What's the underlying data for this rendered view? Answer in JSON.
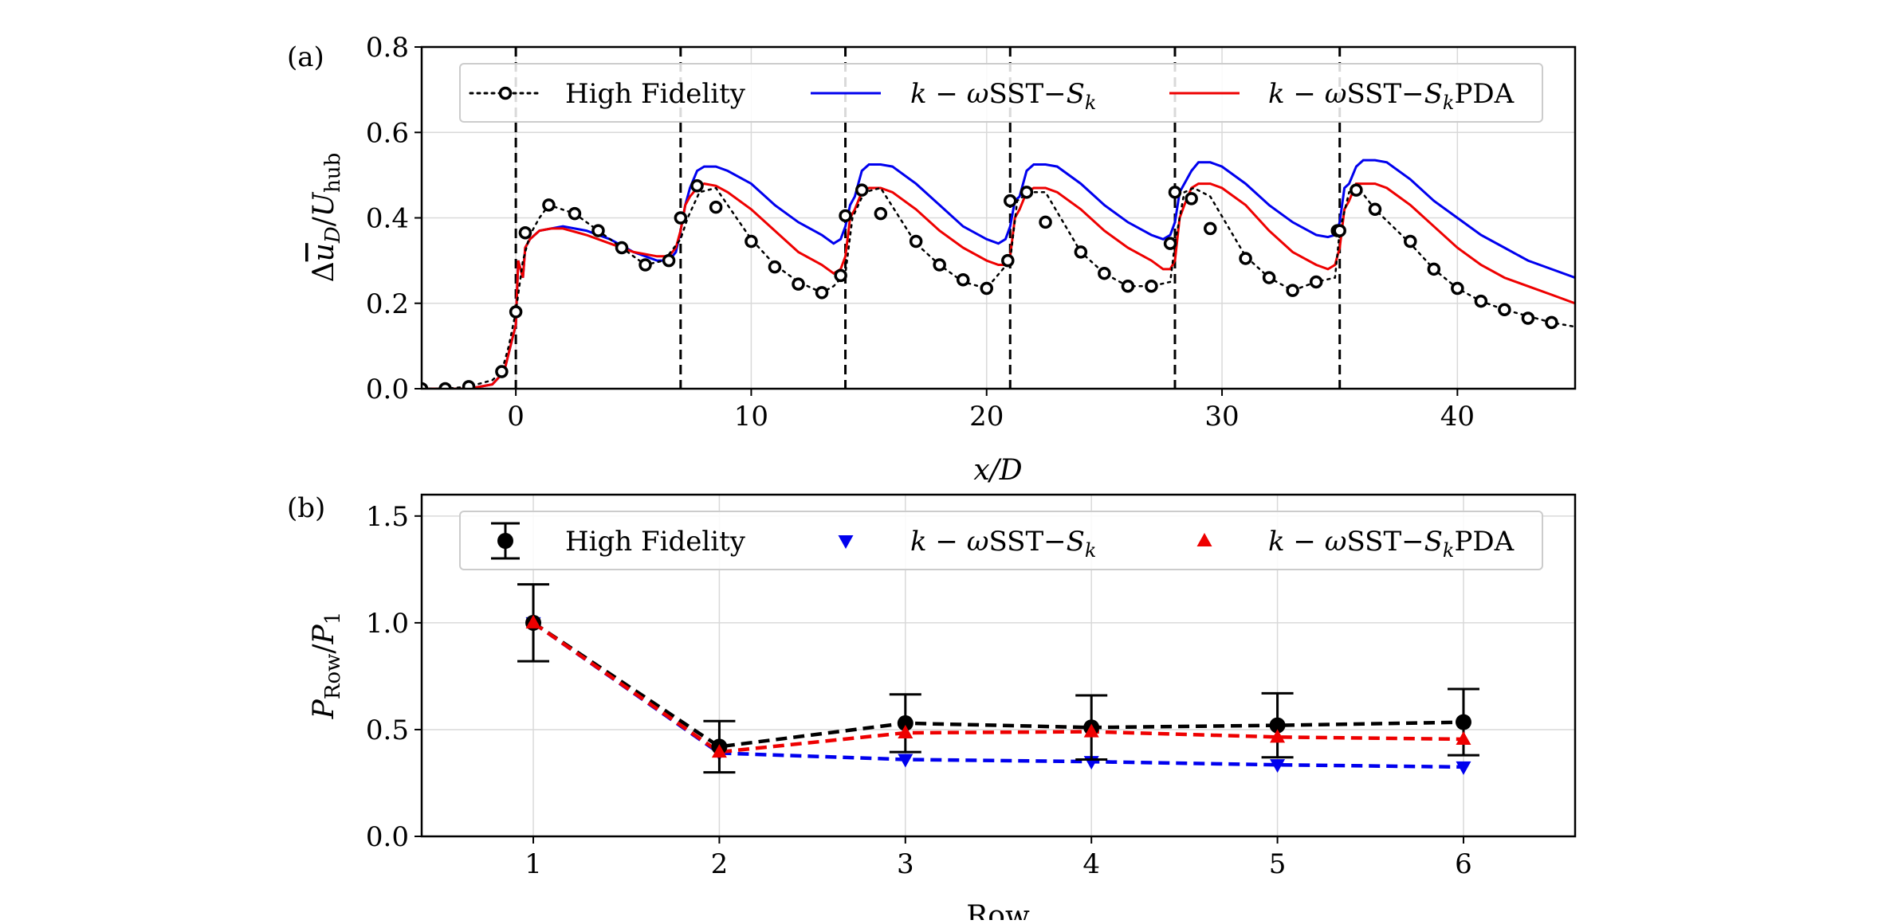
{
  "chart_data": [
    {
      "type": "line",
      "panel_label": "(a)",
      "xlabel": "x/D",
      "ylabel": "Δū_D/U_hub",
      "xlim": [
        -4,
        45
      ],
      "ylim": [
        0,
        0.8
      ],
      "xticks": [
        0,
        10,
        20,
        30,
        40
      ],
      "yticks": [
        0.0,
        0.2,
        0.4,
        0.6,
        0.8
      ],
      "xtick_labels": [
        "0",
        "10",
        "20",
        "30",
        "40"
      ],
      "ytick_labels": [
        "0.0",
        "0.2",
        "0.4",
        "0.6",
        "0.8"
      ],
      "grid": true,
      "legend_position": "top",
      "turbine_rows_x": [
        0,
        7,
        14,
        21,
        28,
        35
      ],
      "series": [
        {
          "name": "High Fidelity",
          "style": "dotted-circles",
          "color": "#000000",
          "x": [
            -4,
            -3,
            -2,
            -1,
            -0.6,
            -0.3,
            0,
            0.3,
            0.6,
            1.0,
            1.4,
            2.5,
            3.5,
            4.5,
            5.5,
            6.3,
            7.0,
            7.3,
            7.8,
            8.5,
            10,
            11,
            12,
            13,
            13.5,
            14.0,
            14.3,
            14.8,
            15.5,
            17,
            18,
            19,
            20,
            21.0,
            21.3,
            21.8,
            22.5,
            24,
            25,
            26,
            27,
            27.8,
            28.0,
            28.4,
            28.8,
            29.5,
            31,
            32,
            33,
            34,
            34.8,
            35.0,
            35.4,
            35.8,
            36.5,
            38,
            39,
            40,
            41,
            42,
            43,
            44,
            45
          ],
          "y": [
            0.0,
            0.0,
            0.005,
            0.02,
            0.04,
            0.1,
            0.18,
            0.3,
            0.36,
            0.4,
            0.43,
            0.41,
            0.37,
            0.33,
            0.29,
            0.3,
            0.35,
            0.4,
            0.46,
            0.47,
            0.35,
            0.29,
            0.25,
            0.225,
            0.24,
            0.27,
            0.4,
            0.46,
            0.47,
            0.34,
            0.29,
            0.25,
            0.235,
            0.3,
            0.44,
            0.46,
            0.46,
            0.32,
            0.27,
            0.24,
            0.24,
            0.25,
            0.34,
            0.46,
            0.47,
            0.45,
            0.31,
            0.26,
            0.23,
            0.25,
            0.26,
            0.37,
            0.46,
            0.47,
            0.42,
            0.34,
            0.28,
            0.235,
            0.205,
            0.185,
            0.17,
            0.155,
            0.145
          ],
          "markers_x": [
            -4,
            -3,
            -2,
            -0.6,
            0,
            0.4,
            1.4,
            2.5,
            3.5,
            4.5,
            5.5,
            6.5,
            7.0,
            7.7,
            8.5,
            10,
            11,
            12,
            13,
            13.8,
            14.0,
            14.7,
            15.5,
            17,
            18,
            19,
            20,
            20.9,
            21.0,
            21.7,
            22.5,
            24,
            25,
            26,
            27,
            27.8,
            28.0,
            28.7,
            29.5,
            31,
            32,
            33,
            34,
            34.9,
            35.0,
            35.7,
            36.5,
            38,
            39,
            40,
            41,
            42,
            43,
            44
          ],
          "markers_y": [
            0.0,
            0.0,
            0.005,
            0.04,
            0.18,
            0.365,
            0.43,
            0.41,
            0.37,
            0.33,
            0.29,
            0.3,
            0.4,
            0.475,
            0.425,
            0.345,
            0.285,
            0.245,
            0.225,
            0.265,
            0.405,
            0.465,
            0.41,
            0.345,
            0.29,
            0.255,
            0.235,
            0.3,
            0.44,
            0.46,
            0.39,
            0.32,
            0.27,
            0.24,
            0.24,
            0.34,
            0.46,
            0.445,
            0.375,
            0.305,
            0.26,
            0.23,
            0.25,
            0.37,
            0.37,
            0.465,
            0.42,
            0.345,
            0.28,
            0.235,
            0.205,
            0.185,
            0.165,
            0.155
          ]
        },
        {
          "name": "k−ωSST−S_k",
          "style": "solid",
          "color": "#0000ee",
          "x": [
            -4,
            -3,
            -2,
            -1,
            -0.5,
            0,
            0.1,
            0.3,
            0.4,
            0.6,
            1.0,
            2,
            3,
            4,
            5,
            6,
            6.5,
            6.8,
            7.0,
            7.2,
            7.4,
            7.7,
            8,
            8.5,
            9,
            10,
            11,
            12,
            13,
            13.5,
            13.8,
            14.0,
            14.2,
            14.4,
            14.7,
            15,
            15.5,
            16,
            17,
            18,
            19,
            20,
            20.5,
            20.8,
            21.0,
            21.2,
            21.4,
            21.7,
            22,
            22.5,
            23,
            24,
            25,
            26,
            27,
            27.5,
            27.8,
            28.0,
            28.2,
            28.4,
            28.7,
            29,
            29.5,
            30,
            31,
            32,
            33,
            34,
            34.5,
            34.8,
            35.0,
            35.2,
            35.4,
            35.7,
            36,
            36.5,
            37,
            38,
            39,
            40,
            41,
            42,
            43,
            44,
            45
          ],
          "y": [
            0.0,
            0.0,
            0.0,
            0.01,
            0.04,
            0.15,
            0.3,
            0.26,
            0.33,
            0.35,
            0.37,
            0.38,
            0.37,
            0.35,
            0.32,
            0.3,
            0.3,
            0.32,
            0.37,
            0.43,
            0.47,
            0.51,
            0.52,
            0.52,
            0.51,
            0.48,
            0.43,
            0.39,
            0.36,
            0.34,
            0.35,
            0.38,
            0.43,
            0.45,
            0.51,
            0.525,
            0.525,
            0.52,
            0.48,
            0.43,
            0.38,
            0.35,
            0.34,
            0.35,
            0.38,
            0.44,
            0.45,
            0.51,
            0.525,
            0.525,
            0.52,
            0.48,
            0.43,
            0.39,
            0.36,
            0.35,
            0.36,
            0.39,
            0.46,
            0.48,
            0.51,
            0.53,
            0.53,
            0.52,
            0.48,
            0.43,
            0.39,
            0.36,
            0.355,
            0.36,
            0.39,
            0.47,
            0.48,
            0.52,
            0.535,
            0.535,
            0.53,
            0.49,
            0.44,
            0.4,
            0.36,
            0.33,
            0.3,
            0.28,
            0.26
          ]
        },
        {
          "name": "k−ωSST−S_kPDA",
          "style": "solid",
          "color": "#ee0000",
          "x": [
            -4,
            -3,
            -2,
            -1,
            -0.5,
            0,
            0.1,
            0.3,
            0.4,
            0.6,
            1.0,
            1.5,
            2,
            3,
            4,
            5,
            6,
            6.5,
            6.8,
            7.0,
            7.2,
            7.4,
            7.7,
            8,
            8.5,
            9,
            10,
            11,
            12,
            13,
            13.5,
            13.8,
            14.0,
            14.2,
            14.4,
            14.7,
            15,
            15.5,
            16,
            17,
            18,
            19,
            20,
            20.5,
            20.8,
            21.0,
            21.2,
            21.4,
            21.7,
            22,
            22.5,
            23,
            24,
            25,
            26,
            27,
            27.5,
            27.8,
            28.0,
            28.2,
            28.4,
            28.7,
            29,
            29.5,
            30,
            31,
            32,
            33,
            34,
            34.5,
            34.8,
            35.0,
            35.2,
            35.4,
            35.7,
            36,
            36.5,
            37,
            38,
            39,
            40,
            41,
            42,
            43,
            44,
            45
          ],
          "y": [
            0.0,
            0.0,
            0.0,
            0.01,
            0.04,
            0.15,
            0.3,
            0.26,
            0.33,
            0.35,
            0.37,
            0.375,
            0.375,
            0.36,
            0.34,
            0.32,
            0.31,
            0.31,
            0.33,
            0.37,
            0.43,
            0.45,
            0.47,
            0.48,
            0.475,
            0.46,
            0.42,
            0.37,
            0.32,
            0.29,
            0.27,
            0.28,
            0.31,
            0.4,
            0.42,
            0.46,
            0.47,
            0.47,
            0.46,
            0.42,
            0.37,
            0.33,
            0.3,
            0.29,
            0.29,
            0.31,
            0.4,
            0.42,
            0.46,
            0.47,
            0.47,
            0.46,
            0.42,
            0.37,
            0.33,
            0.3,
            0.28,
            0.28,
            0.3,
            0.4,
            0.43,
            0.47,
            0.48,
            0.48,
            0.47,
            0.43,
            0.37,
            0.32,
            0.29,
            0.28,
            0.29,
            0.33,
            0.42,
            0.44,
            0.48,
            0.48,
            0.48,
            0.47,
            0.43,
            0.38,
            0.33,
            0.29,
            0.26,
            0.24,
            0.22,
            0.2
          ]
        }
      ]
    },
    {
      "type": "line",
      "panel_label": "(b)",
      "xlabel": "Row",
      "ylabel": "P_Row/P_1",
      "xlim": [
        0.4,
        6.6
      ],
      "ylim": [
        0,
        1.6
      ],
      "xticks": [
        1,
        2,
        3,
        4,
        5,
        6
      ],
      "yticks": [
        0.0,
        0.5,
        1.0,
        1.5
      ],
      "xtick_labels": [
        "1",
        "2",
        "3",
        "4",
        "5",
        "6"
      ],
      "ytick_labels": [
        "0.0",
        "0.5",
        "1.0",
        "1.5"
      ],
      "grid": true,
      "legend_position": "top",
      "series": [
        {
          "name": "High Fidelity",
          "style": "dashed-circles-errorbars",
          "color": "#000000",
          "x": [
            1,
            2,
            3,
            4,
            5,
            6
          ],
          "y": [
            1.0,
            0.42,
            0.53,
            0.51,
            0.52,
            0.535
          ],
          "err": [
            0.18,
            0.12,
            0.135,
            0.15,
            0.15,
            0.155
          ]
        },
        {
          "name": "k−ωSST−S_k",
          "style": "dashed-down-triangles",
          "color": "#0000ee",
          "x": [
            1,
            2,
            3,
            4,
            5,
            6
          ],
          "y": [
            1.0,
            0.39,
            0.36,
            0.35,
            0.335,
            0.325
          ]
        },
        {
          "name": "k−ωSST−S_kPDA",
          "style": "dashed-up-triangles",
          "color": "#ee0000",
          "x": [
            1,
            2,
            3,
            4,
            5,
            6
          ],
          "y": [
            1.0,
            0.395,
            0.485,
            0.49,
            0.465,
            0.455
          ]
        }
      ]
    }
  ]
}
